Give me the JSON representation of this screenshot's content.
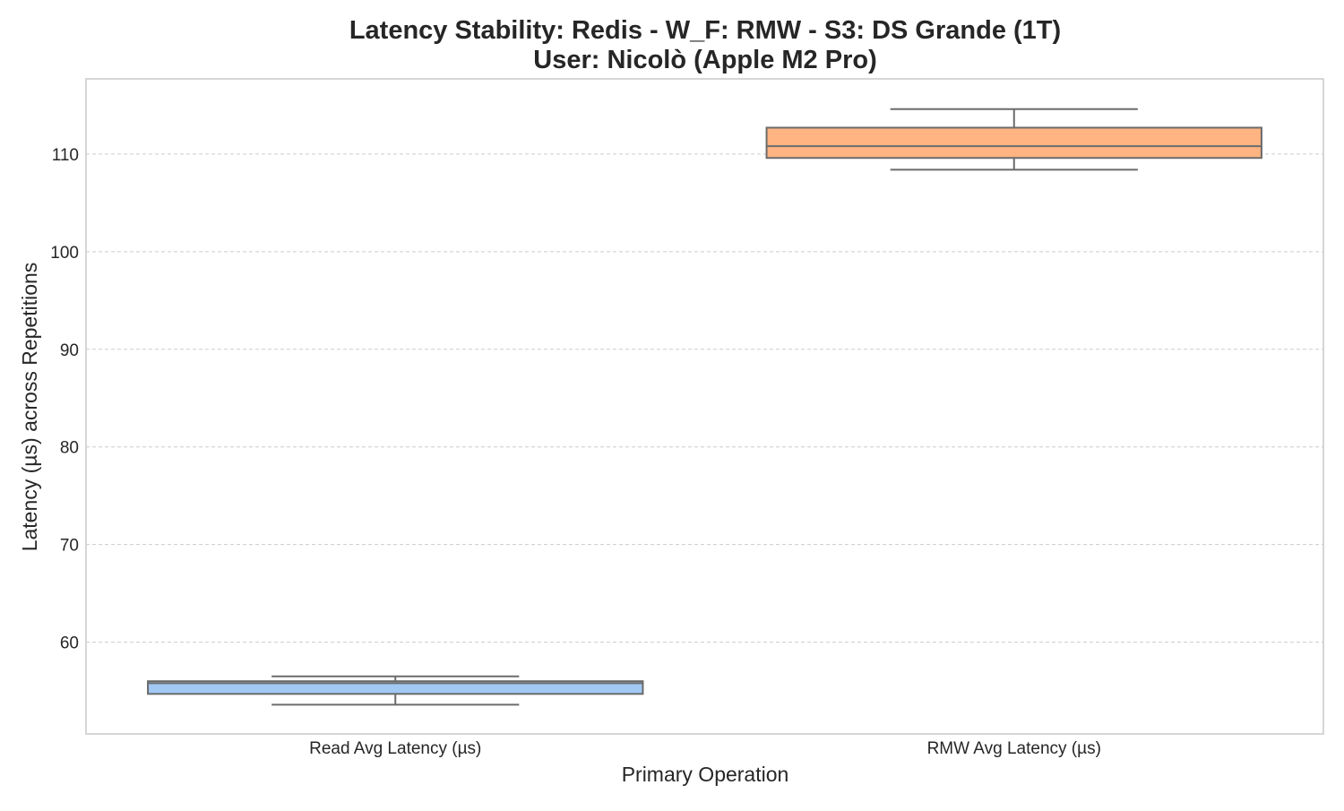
{
  "chart_data": {
    "type": "box",
    "title": "Latency Stability: Redis - W_F: RMW - S3: DS Grande (1T)",
    "subtitle": "User: Nicolò (Apple M2 Pro)",
    "xlabel": "Primary Operation",
    "ylabel": "Latency (µs) across Repetitions",
    "categories": [
      "Read Avg Latency (µs)",
      "RMW Avg Latency (µs)"
    ],
    "boxes": [
      {
        "category": "Read Avg Latency (µs)",
        "whisker_low": 53.6,
        "q1": 54.7,
        "median": 55.8,
        "q3": 56.0,
        "whisker_high": 56.5,
        "color": "#a1c9f4"
      },
      {
        "category": "RMW Avg Latency (µs)",
        "whisker_low": 108.4,
        "q1": 109.6,
        "median": 110.8,
        "q3": 112.7,
        "whisker_high": 114.6,
        "color": "#ffb482"
      }
    ],
    "y_ticks": [
      60,
      70,
      80,
      90,
      100,
      110
    ],
    "ylim": [
      50.6,
      117.7
    ],
    "grid": "y-dashed",
    "legend": "none",
    "colors": {
      "box_edge": "#6b6b6b",
      "grid": "#cccccc",
      "frame": "#cccccc"
    }
  }
}
